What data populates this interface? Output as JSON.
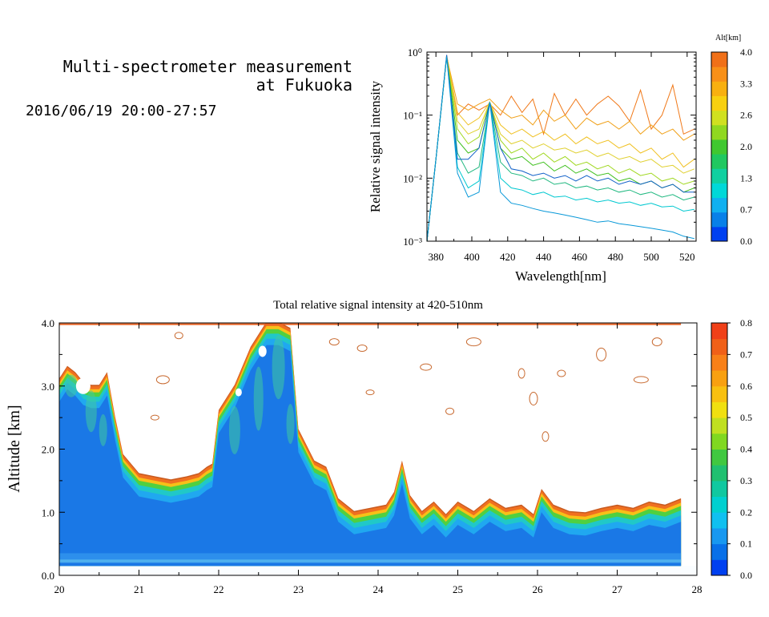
{
  "header": {
    "title_line1": "Multi-spectrometer measurement",
    "title_line2": "at Fukuoka",
    "date_range": "2016/06/19 20:00-27:57"
  },
  "chart_data": [
    {
      "type": "line",
      "title": "",
      "xlabel": "Wavelength[nm]",
      "ylabel": "Relative signal intensity",
      "xlim": [
        375,
        525
      ],
      "ylim": [
        0.001,
        1
      ],
      "y_scale": "log",
      "x_ticks": [
        380,
        400,
        420,
        440,
        460,
        480,
        500,
        520
      ],
      "y_tick_labels": [
        "10⁻³",
        "10⁻²",
        "10⁻¹",
        "10⁰"
      ],
      "colorbar_label": "Alt[km]",
      "colorbar_tick_labels": [
        "0.0",
        "0.7",
        "1.3",
        "2.0",
        "2.6",
        "3.3",
        "4.0"
      ],
      "x": [
        375,
        380,
        386,
        392,
        398,
        404,
        410,
        416,
        422,
        428,
        434,
        440,
        446,
        452,
        458,
        464,
        470,
        476,
        482,
        488,
        494,
        500,
        506,
        512,
        518,
        524
      ],
      "series": [
        {
          "color": "#f07818",
          "values": [
            0.001,
            0.02,
            0.9,
            0.1,
            0.15,
            0.12,
            0.15,
            0.1,
            0.2,
            0.11,
            0.18,
            0.05,
            0.22,
            0.1,
            0.18,
            0.1,
            0.15,
            0.2,
            0.14,
            0.08,
            0.25,
            0.06,
            0.1,
            0.3,
            0.05,
            0.06
          ]
        },
        {
          "color": "#f0a018",
          "values": [
            0.001,
            0.02,
            0.85,
            0.15,
            0.12,
            0.15,
            0.18,
            0.12,
            0.09,
            0.1,
            0.07,
            0.12,
            0.08,
            0.1,
            0.06,
            0.09,
            0.07,
            0.08,
            0.06,
            0.08,
            0.05,
            0.07,
            0.05,
            0.06,
            0.04,
            0.05
          ]
        },
        {
          "color": "#f0c020",
          "values": [
            0.001,
            0.02,
            0.85,
            0.11,
            0.07,
            0.09,
            0.16,
            0.07,
            0.05,
            0.06,
            0.045,
            0.055,
            0.04,
            0.05,
            0.035,
            0.045,
            0.035,
            0.04,
            0.03,
            0.035,
            0.025,
            0.03,
            0.02,
            0.025,
            0.015,
            0.02
          ]
        },
        {
          "color": "#e0d030",
          "values": [
            0.001,
            0.02,
            0.85,
            0.08,
            0.05,
            0.06,
            0.16,
            0.05,
            0.035,
            0.04,
            0.03,
            0.035,
            0.028,
            0.03,
            0.025,
            0.028,
            0.022,
            0.025,
            0.02,
            0.022,
            0.018,
            0.02,
            0.015,
            0.016,
            0.012,
            0.014
          ]
        },
        {
          "color": "#a0d820",
          "values": [
            0.001,
            0.02,
            0.85,
            0.06,
            0.035,
            0.045,
            0.16,
            0.04,
            0.025,
            0.03,
            0.02,
            0.025,
            0.018,
            0.022,
            0.016,
            0.018,
            0.014,
            0.016,
            0.012,
            0.014,
            0.011,
            0.012,
            0.009,
            0.01,
            0.008,
            0.009
          ]
        },
        {
          "color": "#40c020",
          "values": [
            0.001,
            0.02,
            0.85,
            0.04,
            0.025,
            0.03,
            0.16,
            0.03,
            0.02,
            0.022,
            0.016,
            0.018,
            0.013,
            0.016,
            0.012,
            0.014,
            0.011,
            0.012,
            0.009,
            0.01,
            0.008,
            0.009,
            0.007,
            0.008,
            0.006,
            0.007
          ]
        },
        {
          "color": "#20b880",
          "values": [
            0.001,
            0.02,
            0.85,
            0.025,
            0.012,
            0.015,
            0.16,
            0.018,
            0.012,
            0.011,
            0.009,
            0.01,
            0.008,
            0.0085,
            0.007,
            0.0075,
            0.0065,
            0.007,
            0.006,
            0.0065,
            0.0055,
            0.006,
            0.005,
            0.0055,
            0.0045,
            0.005
          ]
        },
        {
          "color": "#00c8d0",
          "values": [
            0.001,
            0.02,
            0.85,
            0.015,
            0.007,
            0.009,
            0.16,
            0.01,
            0.007,
            0.0065,
            0.0055,
            0.006,
            0.005,
            0.0052,
            0.0045,
            0.0048,
            0.0042,
            0.0045,
            0.004,
            0.0042,
            0.0037,
            0.004,
            0.0035,
            0.0036,
            0.003,
            0.0032
          ]
        },
        {
          "color": "#1060c8",
          "values": [
            0.001,
            0.02,
            0.9,
            0.02,
            0.02,
            0.03,
            0.16,
            0.03,
            0.014,
            0.013,
            0.011,
            0.012,
            0.01,
            0.011,
            0.009,
            0.011,
            0.009,
            0.01,
            0.008,
            0.009,
            0.008,
            0.009,
            0.007,
            0.008,
            0.006,
            0.006
          ]
        },
        {
          "color": "#0898d8",
          "values": [
            0.001,
            0.02,
            0.85,
            0.012,
            0.005,
            0.006,
            0.16,
            0.006,
            0.004,
            0.0037,
            0.0033,
            0.003,
            0.0028,
            0.0026,
            0.0024,
            0.0022,
            0.002,
            0.0021,
            0.0019,
            0.0018,
            0.0017,
            0.0016,
            0.0015,
            0.0014,
            0.0012,
            0.0011
          ]
        }
      ]
    },
    {
      "type": "heatmap",
      "title": "Total relative signal intensity at 420-510nm",
      "xlabel": "",
      "ylabel": "Altitude [km]",
      "xlim": [
        20,
        28
      ],
      "ylim": [
        0,
        4
      ],
      "x_ticks": [
        20,
        21,
        22,
        23,
        24,
        25,
        26,
        27,
        28
      ],
      "y_tick_labels": [
        "0.0",
        "1.0",
        "2.0",
        "3.0",
        "4.0"
      ],
      "colorbar_tick_labels": [
        "0.0",
        "0.1",
        "0.2",
        "0.3",
        "0.4",
        "0.5",
        "0.6",
        "0.7",
        "0.8"
      ],
      "colorbar_range": [
        0,
        0.8
      ],
      "data_x_end": 27.8,
      "data_y_start": 0.15,
      "boundary_time": [
        20.0,
        20.1,
        20.2,
        20.3,
        20.4,
        20.5,
        20.6,
        20.7,
        20.8,
        21.0,
        21.2,
        21.4,
        21.6,
        21.75,
        21.85,
        21.92,
        22.0,
        22.2,
        22.4,
        22.6,
        22.75,
        22.9,
        23.0,
        23.2,
        23.35,
        23.5,
        23.7,
        23.9,
        24.1,
        24.2,
        24.3,
        24.4,
        24.55,
        24.7,
        24.85,
        25.0,
        25.2,
        25.4,
        25.6,
        25.8,
        25.95,
        26.05,
        26.2,
        26.4,
        26.6,
        26.8,
        27.0,
        27.2,
        27.4,
        27.6,
        27.8
      ],
      "boundary_alt": [
        3.1,
        3.3,
        3.2,
        3.05,
        3.0,
        3.0,
        3.2,
        2.5,
        1.9,
        1.6,
        1.55,
        1.5,
        1.55,
        1.6,
        1.7,
        1.75,
        2.6,
        3.0,
        3.6,
        4.0,
        4.0,
        3.9,
        2.3,
        1.8,
        1.7,
        1.2,
        1.0,
        1.05,
        1.1,
        1.3,
        1.8,
        1.25,
        1.0,
        1.15,
        0.95,
        1.15,
        1.0,
        1.2,
        1.05,
        1.1,
        0.95,
        1.35,
        1.1,
        1.0,
        0.98,
        1.05,
        1.1,
        1.05,
        1.15,
        1.1,
        1.2
      ]
    }
  ]
}
